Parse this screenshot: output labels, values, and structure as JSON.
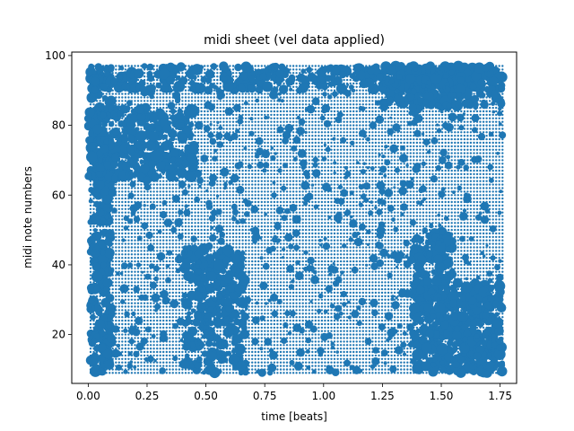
{
  "chart_data": {
    "type": "scatter",
    "title": "midi sheet (vel data applied)",
    "xlabel": "time [beats]",
    "ylabel": "midi note numbers",
    "xlim": [
      -0.07,
      1.82
    ],
    "ylim": [
      6,
      101
    ],
    "x_ticks": [
      0.0,
      0.25,
      0.5,
      0.75,
      1.0,
      1.25,
      1.5,
      1.75
    ],
    "x_tick_labels": [
      "0.00",
      "0.25",
      "0.50",
      "0.75",
      "1.00",
      "1.25",
      "1.50",
      "1.75"
    ],
    "y_ticks": [
      20,
      40,
      60,
      80,
      100
    ],
    "y_tick_labels": [
      "20",
      "40",
      "60",
      "80",
      "100"
    ],
    "grid": false,
    "color": "#1f77b4",
    "x_range": [
      0.01,
      1.76
    ],
    "y_range": [
      9,
      97
    ],
    "dense_regions": [
      {
        "x": [
          0.41,
          0.67
        ],
        "y": [
          9,
          45
        ]
      },
      {
        "x": [
          0.01,
          0.1
        ],
        "y": [
          9,
          97
        ]
      },
      {
        "x": [
          1.38,
          1.55
        ],
        "y": [
          9,
          50
        ]
      },
      {
        "x": [
          1.55,
          1.76
        ],
        "y": [
          9,
          35
        ]
      },
      {
        "x": [
          0.01,
          1.76
        ],
        "y": [
          90,
          97
        ]
      },
      {
        "x": [
          0.0,
          0.45
        ],
        "y": [
          65,
          85
        ]
      },
      {
        "x": [
          1.25,
          1.76
        ],
        "y": [
          85,
          97
        ]
      }
    ]
  }
}
